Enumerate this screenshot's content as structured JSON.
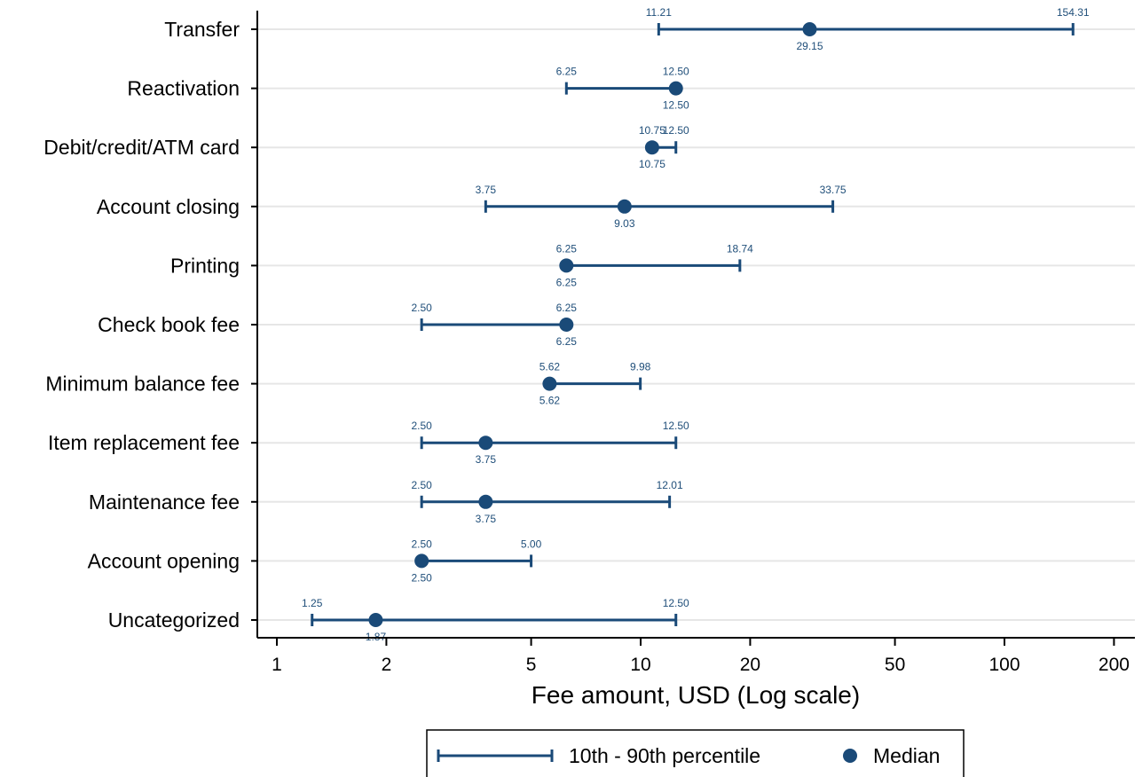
{
  "colors": {
    "series": "#1a4a78",
    "grid": "#e6e6e6",
    "axis": "#000000",
    "value_label": "#1f4e79"
  },
  "chart_data": {
    "type": "range-dot",
    "orientation": "horizontal",
    "xlabel": "Fee amount, USD (Log scale)",
    "x_scale": "log",
    "xlim": [
      0.95,
      215
    ],
    "x_ticks": [
      1,
      2,
      5,
      10,
      20,
      50,
      100,
      200
    ],
    "x_tick_labels": [
      "1",
      "2",
      "5",
      "10",
      "20",
      "50",
      "100",
      "200"
    ],
    "grid": "horizontal at each category",
    "categories": [
      "Transfer",
      "Reactivation",
      "Debit/credit/ATM card",
      "Account closing",
      "Printing",
      "Check book fee",
      "Minimum balance fee",
      "Item replacement fee",
      "Maintenance fee",
      "Account opening",
      "Uncategorized"
    ],
    "series": [
      {
        "name": "10th - 90th percentile",
        "low": [
          11.21,
          6.25,
          10.75,
          3.75,
          6.25,
          2.5,
          5.62,
          2.5,
          2.5,
          2.5,
          1.25
        ],
        "high": [
          154.31,
          12.5,
          12.5,
          33.75,
          18.74,
          6.25,
          9.98,
          12.5,
          12.01,
          5.0,
          12.5
        ],
        "low_labels": [
          "11.21",
          "6.25",
          "10.75",
          "3.75",
          "6.25",
          "2.50",
          "5.62",
          "2.50",
          "2.50",
          "2.50",
          "1.25"
        ],
        "high_labels": [
          "154.31",
          "12.50",
          "12.50",
          "33.75",
          "18.74",
          "6.25",
          "9.98",
          "12.50",
          "12.01",
          "5.00",
          "12.50"
        ]
      },
      {
        "name": "Median",
        "values": [
          29.15,
          12.5,
          10.75,
          9.03,
          6.25,
          6.25,
          5.62,
          3.75,
          3.75,
          2.5,
          1.87
        ],
        "labels": [
          "29.15",
          "12.50",
          "10.75",
          "9.03",
          "6.25",
          "6.25",
          "5.62",
          "3.75",
          "3.75",
          "2.50",
          "1.87"
        ]
      }
    ],
    "legend": {
      "position": "bottom-center",
      "items": [
        "10th - 90th percentile",
        "Median"
      ]
    }
  }
}
